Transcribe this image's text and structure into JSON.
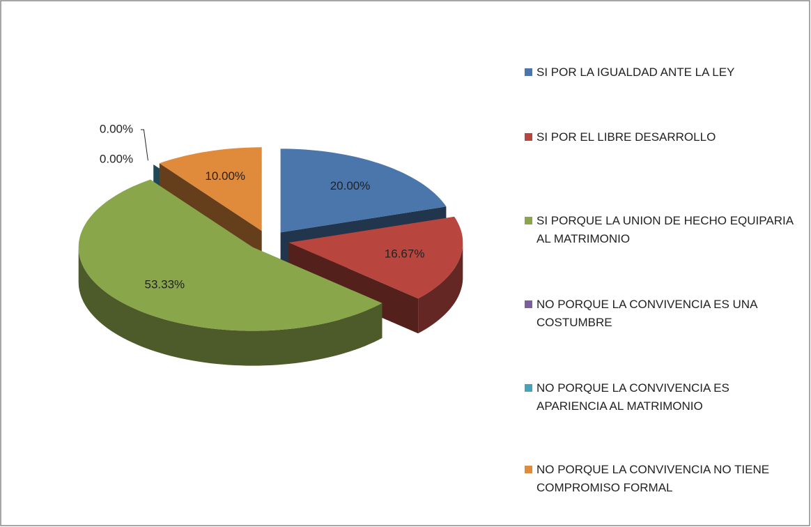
{
  "chart_data": {
    "type": "pie",
    "categories": [
      "SI POR LA IGUALDAD ANTE LA LEY",
      "SI POR EL LIBRE DESARROLLO",
      "SI PORQUE LA UNION DE HECHO EQUIPARIA AL MATRIMONIO",
      "NO PORQUE LA CONVIVENCIA ES UNA COSTUMBRE",
      "NO PORQUE LA CONVIVENCIA ES APARIENCIA AL MATRIMONIO",
      "NO PORQUE LA CONVIVENCIA NO TIENE COMPROMISO FORMAL"
    ],
    "values": [
      20,
      16.67,
      53.33,
      0,
      0,
      10
    ],
    "value_labels": [
      "20.00%",
      "16.67%",
      "53.33%",
      "0.00%",
      "0.00%",
      "10.00%"
    ],
    "colors": [
      "#4a76ac",
      "#b8463f",
      "#8aa64b",
      "#7b5f9c",
      "#47a3bc",
      "#e08a3c"
    ],
    "legend": "right"
  }
}
